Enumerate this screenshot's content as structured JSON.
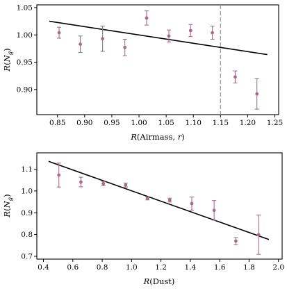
{
  "chart_data": [
    {
      "type": "scatter",
      "xlabel": "R(Airmass, r)",
      "ylabel": "R(N_g)",
      "xlim": [
        0.812,
        1.257
      ],
      "ylim": [
        0.854,
        1.055
      ],
      "xticks": [
        0.85,
        0.9,
        0.95,
        1.0,
        1.05,
        1.1,
        1.15,
        1.2,
        1.25
      ],
      "xtick_labels": [
        "0.85",
        "0.90",
        "0.95",
        "1.00",
        "1.05",
        "1.10",
        "1.15",
        "1.20",
        "1.25"
      ],
      "yticks": [
        0.9,
        0.95,
        1.0,
        1.05
      ],
      "ytick_labels": [
        "0.90",
        "0.95",
        "1.00",
        "1.05"
      ],
      "points": [
        {
          "x": 0.853,
          "y": 1.004,
          "err": 0.01
        },
        {
          "x": 0.892,
          "y": 0.983,
          "err": 0.015
        },
        {
          "x": 0.933,
          "y": 0.993,
          "err": 0.023
        },
        {
          "x": 0.974,
          "y": 0.977,
          "err": 0.015
        },
        {
          "x": 1.014,
          "y": 1.031,
          "err": 0.013
        },
        {
          "x": 1.055,
          "y": 0.998,
          "err": 0.011
        },
        {
          "x": 1.095,
          "y": 1.008,
          "err": 0.011
        },
        {
          "x": 1.135,
          "y": 1.004,
          "err": 0.012
        },
        {
          "x": 1.177,
          "y": 0.923,
          "err": 0.011
        },
        {
          "x": 1.217,
          "y": 0.892,
          "err": 0.028
        }
      ],
      "fit_line": {
        "x": [
          0.835,
          1.236
        ],
        "y": [
          1.025,
          0.964
        ]
      },
      "vline": {
        "x": 1.15
      },
      "colors": {
        "points": "#a86b8a",
        "fit": "#000000",
        "vline": "#999999"
      },
      "grid": false
    },
    {
      "type": "scatter",
      "xlabel": "R(Dust)",
      "ylabel": "R(N_g)",
      "xlim": [
        0.355,
        2.025
      ],
      "ylim": [
        0.687,
        1.175
      ],
      "xticks": [
        0.4,
        0.6,
        0.8,
        1.0,
        1.2,
        1.4,
        1.6,
        1.8,
        2.0
      ],
      "xtick_labels": [
        "0.4",
        "0.6",
        "0.8",
        "1.0",
        "1.2",
        "1.4",
        "1.6",
        "1.8",
        "2.0"
      ],
      "yticks": [
        0.7,
        0.8,
        0.9,
        1.0,
        1.1
      ],
      "ytick_labels": [
        "0.7",
        "0.8",
        "0.9",
        "1.0",
        "1.1"
      ],
      "points": [
        {
          "x": 0.505,
          "y": 1.073,
          "err": 0.055
        },
        {
          "x": 0.655,
          "y": 1.041,
          "err": 0.022
        },
        {
          "x": 0.808,
          "y": 1.034,
          "err": 0.01
        },
        {
          "x": 0.96,
          "y": 1.027,
          "err": 0.009
        },
        {
          "x": 1.108,
          "y": 0.966,
          "err": 0.007
        },
        {
          "x": 1.26,
          "y": 0.958,
          "err": 0.009
        },
        {
          "x": 1.41,
          "y": 0.942,
          "err": 0.03
        },
        {
          "x": 1.562,
          "y": 0.911,
          "err": 0.045
        },
        {
          "x": 1.71,
          "y": 0.77,
          "err": 0.016
        },
        {
          "x": 1.865,
          "y": 0.799,
          "err": 0.09
        }
      ],
      "fit_line": {
        "x": [
          0.435,
          1.935
        ],
        "y": [
          1.136,
          0.777
        ]
      },
      "colors": {
        "points": "#a86b8a",
        "fit": "#000000"
      },
      "grid": false
    }
  ]
}
